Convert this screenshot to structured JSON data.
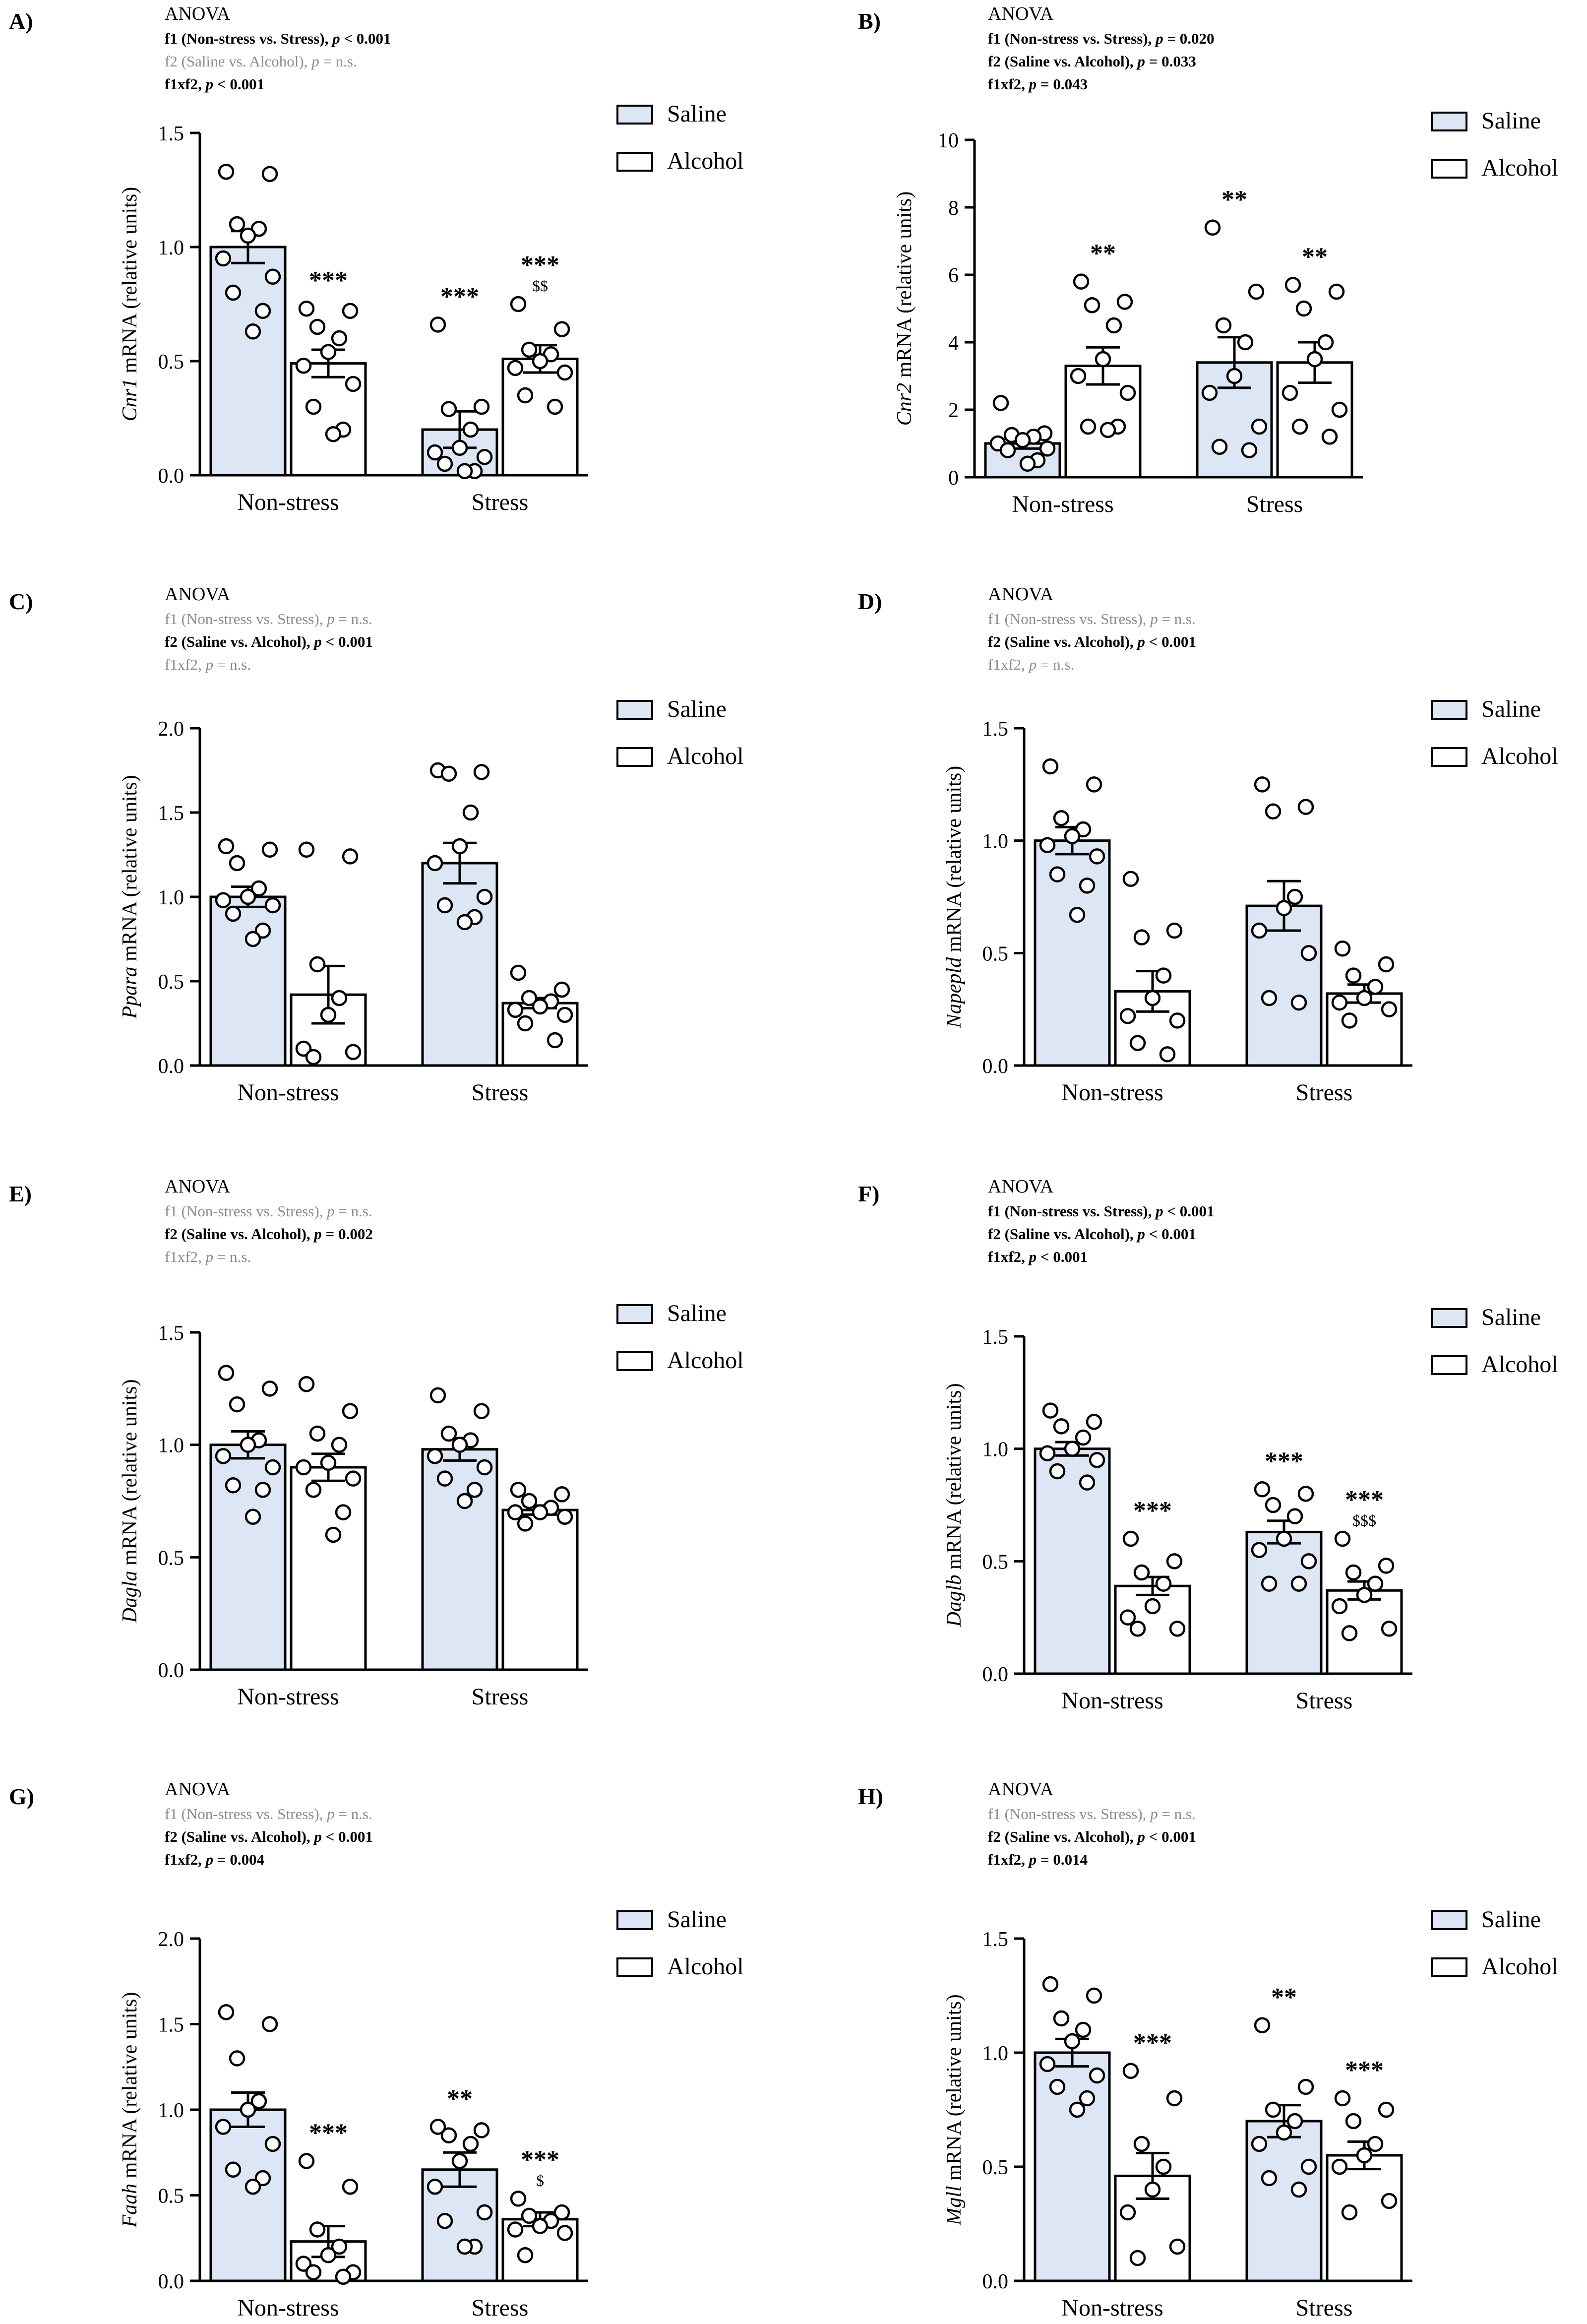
{
  "figure": {
    "legend_labels": {
      "saline": "Saline",
      "alcohol": "Alcohol"
    },
    "anova_heading": "ANOVA",
    "ylabel_suffix": " mRNA (relative units)",
    "colors": {
      "saline": "#dce6f5",
      "alcohol": "#ffffff",
      "stroke": "#000000",
      "ns_text": "#8c8c8c"
    }
  },
  "chart_data": [
    {
      "panel": "A)",
      "type": "bar",
      "gene": "Cnr1",
      "anova": [
        {
          "factor": "f1 (Non-stress vs. Stress), ",
          "pvalue": "< 0.001",
          "significant": true
        },
        {
          "factor": "f2 (Saline vs. Alcohol), ",
          "pvalue": "= n.s.",
          "significant": false
        },
        {
          "factor": "f1xf2, ",
          "pvalue": "< 0.001",
          "significant": true
        }
      ],
      "categories": [
        "Non-stress",
        "Stress"
      ],
      "ylim": [
        0,
        1.5
      ],
      "yticks": [
        "0.0",
        "0.5",
        "1.0",
        "1.5"
      ],
      "series": [
        {
          "name": "Saline",
          "values": [
            1.0,
            0.2
          ],
          "sem": [
            0.07,
            0.08
          ],
          "points": [
            [
              1.33,
              1.32,
              1.1,
              1.08,
              1.05,
              0.95,
              0.87,
              0.8,
              0.72,
              0.63
            ],
            [
              0.66,
              0.3,
              0.29,
              0.2,
              0.12,
              0.1,
              0.08,
              0.05,
              0.0,
              0.0
            ]
          ],
          "annotations": [
            "",
            "***"
          ],
          "sub_annotations": [
            "",
            ""
          ]
        },
        {
          "name": "Alcohol",
          "values": [
            0.49,
            0.51
          ],
          "sem": [
            0.06,
            0.06
          ],
          "points": [
            [
              0.73,
              0.72,
              0.65,
              0.6,
              0.54,
              0.48,
              0.4,
              0.3,
              0.2,
              0.18
            ],
            [
              0.75,
              0.64,
              0.55,
              0.53,
              0.5,
              0.47,
              0.45,
              0.35,
              0.3
            ]
          ],
          "annotations": [
            "***",
            "***"
          ],
          "sub_annotations": [
            "",
            "$$"
          ]
        }
      ]
    },
    {
      "panel": "B)",
      "type": "bar",
      "gene": "Cnr2",
      "anova": [
        {
          "factor": "f1 (Non-stress vs. Stress), ",
          "pvalue": "= 0.020",
          "significant": true
        },
        {
          "factor": "f2 (Saline vs. Alcohol), ",
          "pvalue": "= 0.033",
          "significant": true
        },
        {
          "factor": "f1xf2, ",
          "pvalue": "= 0.043",
          "significant": true
        }
      ],
      "categories": [
        "Non-stress",
        "Stress"
      ],
      "ylim": [
        0,
        10
      ],
      "yticks": [
        "0",
        "2",
        "4",
        "6",
        "8",
        "10"
      ],
      "series": [
        {
          "name": "Saline",
          "values": [
            1.0,
            3.4
          ],
          "sem": [
            0.15,
            0.75
          ],
          "points": [
            [
              2.2,
              1.3,
              1.25,
              1.2,
              1.1,
              1.0,
              0.85,
              0.8,
              0.5,
              0.4
            ],
            [
              7.4,
              5.5,
              4.5,
              4.0,
              3.0,
              2.5,
              1.5,
              0.9,
              0.8
            ]
          ],
          "annotations": [
            "",
            "**"
          ],
          "sub_annotations": [
            "",
            ""
          ]
        },
        {
          "name": "Alcohol",
          "values": [
            3.3,
            3.4
          ],
          "sem": [
            0.55,
            0.6
          ],
          "points": [
            [
              5.8,
              5.2,
              5.1,
              4.5,
              3.5,
              3.0,
              2.5,
              1.5,
              1.5,
              1.4
            ],
            [
              5.7,
              5.5,
              5.0,
              4.0,
              3.5,
              2.5,
              2.0,
              1.5,
              1.2
            ]
          ],
          "annotations": [
            "**",
            "**"
          ],
          "sub_annotations": [
            "",
            ""
          ]
        }
      ]
    },
    {
      "panel": "C)",
      "type": "bar",
      "gene": "Ppara",
      "anova": [
        {
          "factor": "f1 (Non-stress vs. Stress), ",
          "pvalue": "= n.s.",
          "significant": false
        },
        {
          "factor": "f2 (Saline vs. Alcohol), ",
          "pvalue": "< 0.001",
          "significant": true
        },
        {
          "factor": "f1xf2, ",
          "pvalue": "= n.s.",
          "significant": false
        }
      ],
      "categories": [
        "Non-stress",
        "Stress"
      ],
      "ylim": [
        0,
        2.0
      ],
      "yticks": [
        "0.0",
        "0.5",
        "1.0",
        "1.5",
        "2.0"
      ],
      "series": [
        {
          "name": "Saline",
          "values": [
            1.0,
            1.2
          ],
          "sem": [
            0.06,
            0.12
          ],
          "points": [
            [
              1.3,
              1.28,
              1.2,
              1.05,
              1.0,
              0.98,
              0.95,
              0.9,
              0.8,
              0.75
            ],
            [
              1.75,
              1.74,
              1.73,
              1.5,
              1.3,
              1.2,
              1.0,
              0.95,
              0.88,
              0.85
            ]
          ],
          "annotations": [
            "",
            ""
          ],
          "sub_annotations": [
            "",
            ""
          ]
        },
        {
          "name": "Alcohol",
          "values": [
            0.42,
            0.37
          ],
          "sem": [
            0.17,
            0.03
          ],
          "points": [
            [
              1.28,
              1.24,
              0.6,
              0.4,
              0.3,
              0.1,
              0.08,
              0.05
            ],
            [
              0.55,
              0.45,
              0.4,
              0.38,
              0.35,
              0.33,
              0.3,
              0.25,
              0.15
            ]
          ],
          "annotations": [
            "",
            ""
          ],
          "sub_annotations": [
            "",
            ""
          ]
        }
      ]
    },
    {
      "panel": "D)",
      "type": "bar",
      "gene": "Napepld",
      "anova": [
        {
          "factor": "f1 (Non-stress vs. Stress), ",
          "pvalue": "= n.s.",
          "significant": false
        },
        {
          "factor": "f2 (Saline vs. Alcohol), ",
          "pvalue": "< 0.001",
          "significant": true
        },
        {
          "factor": "f1xf2, ",
          "pvalue": "= n.s.",
          "significant": false
        }
      ],
      "categories": [
        "Non-stress",
        "Stress"
      ],
      "ylim": [
        0,
        1.5
      ],
      "yticks": [
        "0.0",
        "0.5",
        "1.0",
        "1.5"
      ],
      "series": [
        {
          "name": "Saline",
          "values": [
            1.0,
            0.71
          ],
          "sem": [
            0.06,
            0.11
          ],
          "points": [
            [
              1.33,
              1.25,
              1.1,
              1.05,
              1.02,
              0.98,
              0.93,
              0.85,
              0.8,
              0.67
            ],
            [
              1.25,
              1.15,
              1.13,
              0.75,
              0.7,
              0.6,
              0.5,
              0.3,
              0.28
            ]
          ],
          "annotations": [
            "",
            ""
          ],
          "sub_annotations": [
            "",
            ""
          ]
        },
        {
          "name": "Alcohol",
          "values": [
            0.33,
            0.32
          ],
          "sem": [
            0.09,
            0.04
          ],
          "points": [
            [
              0.83,
              0.6,
              0.57,
              0.4,
              0.3,
              0.22,
              0.2,
              0.1,
              0.05
            ],
            [
              0.52,
              0.45,
              0.4,
              0.35,
              0.3,
              0.28,
              0.25,
              0.2
            ]
          ],
          "annotations": [
            "",
            ""
          ],
          "sub_annotations": [
            "",
            ""
          ]
        }
      ]
    },
    {
      "panel": "E)",
      "type": "bar",
      "gene": "Dagla",
      "anova": [
        {
          "factor": "f1 (Non-stress vs. Stress), ",
          "pvalue": "= n.s.",
          "significant": false
        },
        {
          "factor": "f2 (Saline vs. Alcohol), ",
          "pvalue": "= 0.002",
          "significant": true
        },
        {
          "factor": "f1xf2, ",
          "pvalue": "= n.s.",
          "significant": false
        }
      ],
      "categories": [
        "Non-stress",
        "Stress"
      ],
      "ylim": [
        0,
        1.5
      ],
      "yticks": [
        "0.0",
        "0.5",
        "1.0",
        "1.5"
      ],
      "series": [
        {
          "name": "Saline",
          "values": [
            1.0,
            0.98
          ],
          "sem": [
            0.06,
            0.05
          ],
          "points": [
            [
              1.32,
              1.25,
              1.18,
              1.02,
              1.0,
              0.95,
              0.9,
              0.82,
              0.8,
              0.68
            ],
            [
              1.22,
              1.15,
              1.05,
              1.02,
              1.0,
              0.95,
              0.9,
              0.85,
              0.8,
              0.75
            ]
          ],
          "annotations": [
            "",
            ""
          ],
          "sub_annotations": [
            "",
            ""
          ]
        },
        {
          "name": "Alcohol",
          "values": [
            0.9,
            0.71
          ],
          "sem": [
            0.06,
            0.02
          ],
          "points": [
            [
              1.27,
              1.15,
              1.05,
              1.0,
              0.92,
              0.9,
              0.85,
              0.8,
              0.7,
              0.6
            ],
            [
              0.8,
              0.78,
              0.75,
              0.72,
              0.7,
              0.7,
              0.68,
              0.65
            ]
          ],
          "annotations": [
            "",
            ""
          ],
          "sub_annotations": [
            "",
            ""
          ]
        }
      ]
    },
    {
      "panel": "F)",
      "type": "bar",
      "gene": "Daglb",
      "anova": [
        {
          "factor": "f1 (Non-stress vs. Stress), ",
          "pvalue": "< 0.001",
          "significant": true
        },
        {
          "factor": "f2 (Saline vs. Alcohol), ",
          "pvalue": "< 0.001",
          "significant": true
        },
        {
          "factor": "f1xf2, ",
          "pvalue": "< 0.001",
          "significant": true
        }
      ],
      "categories": [
        "Non-stress",
        "Stress"
      ],
      "ylim": [
        0,
        1.5
      ],
      "yticks": [
        "0.0",
        "0.5",
        "1.0",
        "1.5"
      ],
      "series": [
        {
          "name": "Saline",
          "values": [
            1.0,
            0.63
          ],
          "sem": [
            0.03,
            0.05
          ],
          "points": [
            [
              1.17,
              1.12,
              1.1,
              1.05,
              1.0,
              0.98,
              0.95,
              0.9,
              0.85
            ],
            [
              0.82,
              0.8,
              0.75,
              0.7,
              0.6,
              0.55,
              0.5,
              0.4,
              0.4
            ]
          ],
          "annotations": [
            "",
            "***"
          ],
          "sub_annotations": [
            "",
            ""
          ]
        },
        {
          "name": "Alcohol",
          "values": [
            0.39,
            0.37
          ],
          "sem": [
            0.04,
            0.04
          ],
          "points": [
            [
              0.6,
              0.5,
              0.45,
              0.4,
              0.3,
              0.25,
              0.2,
              0.2
            ],
            [
              0.6,
              0.48,
              0.45,
              0.4,
              0.35,
              0.3,
              0.2,
              0.18
            ]
          ],
          "annotations": [
            "***",
            "***"
          ],
          "sub_annotations": [
            "",
            "$$$"
          ]
        }
      ]
    },
    {
      "panel": "G)",
      "type": "bar",
      "gene": "Faah",
      "anova": [
        {
          "factor": "f1 (Non-stress vs. Stress), ",
          "pvalue": "= n.s.",
          "significant": false
        },
        {
          "factor": "f2 (Saline vs. Alcohol), ",
          "pvalue": "< 0.001",
          "significant": true
        },
        {
          "factor": "f1xf2, ",
          "pvalue": "= 0.004",
          "significant": true
        }
      ],
      "categories": [
        "Non-stress",
        "Stress"
      ],
      "ylim": [
        0,
        2.0
      ],
      "yticks": [
        "0.0",
        "0.5",
        "1.0",
        "1.5",
        "2.0"
      ],
      "series": [
        {
          "name": "Saline",
          "values": [
            1.0,
            0.65
          ],
          "sem": [
            0.1,
            0.1
          ],
          "points": [
            [
              1.57,
              1.5,
              1.3,
              1.05,
              1.0,
              0.9,
              0.8,
              0.65,
              0.6,
              0.55
            ],
            [
              0.9,
              0.88,
              0.85,
              0.8,
              0.7,
              0.55,
              0.4,
              0.35,
              0.2,
              0.2
            ]
          ],
          "annotations": [
            "",
            "**"
          ],
          "sub_annotations": [
            "",
            ""
          ]
        },
        {
          "name": "Alcohol",
          "values": [
            0.23,
            0.36
          ],
          "sem": [
            0.09,
            0.04
          ],
          "points": [
            [
              0.7,
              0.55,
              0.3,
              0.2,
              0.15,
              0.1,
              0.05,
              0.05,
              0.02
            ],
            [
              0.48,
              0.4,
              0.38,
              0.35,
              0.32,
              0.3,
              0.28,
              0.15
            ]
          ],
          "annotations": [
            "***",
            "***"
          ],
          "sub_annotations": [
            "",
            "$"
          ]
        }
      ]
    },
    {
      "panel": "H)",
      "type": "bar",
      "gene": "Mgll",
      "anova": [
        {
          "factor": "f1 (Non-stress vs. Stress), ",
          "pvalue": "= n.s.",
          "significant": false
        },
        {
          "factor": "f2 (Saline vs. Alcohol), ",
          "pvalue": "< 0.001",
          "significant": true
        },
        {
          "factor": "f1xf2, ",
          "pvalue": "= 0.014",
          "significant": true
        }
      ],
      "categories": [
        "Non-stress",
        "Stress"
      ],
      "ylim": [
        0,
        1.5
      ],
      "yticks": [
        "0.0",
        "0.5",
        "1.0",
        "1.5"
      ],
      "series": [
        {
          "name": "Saline",
          "values": [
            1.0,
            0.7
          ],
          "sem": [
            0.06,
            0.07
          ],
          "points": [
            [
              1.3,
              1.25,
              1.15,
              1.1,
              1.05,
              0.95,
              0.9,
              0.85,
              0.8,
              0.75
            ],
            [
              1.12,
              0.85,
              0.75,
              0.7,
              0.65,
              0.6,
              0.5,
              0.45,
              0.4
            ]
          ],
          "annotations": [
            "",
            "**"
          ],
          "sub_annotations": [
            "",
            ""
          ]
        },
        {
          "name": "Alcohol",
          "values": [
            0.46,
            0.55
          ],
          "sem": [
            0.1,
            0.06
          ],
          "points": [
            [
              0.92,
              0.8,
              0.6,
              0.5,
              0.4,
              0.3,
              0.15,
              0.1
            ],
            [
              0.8,
              0.75,
              0.7,
              0.6,
              0.55,
              0.5,
              0.35,
              0.3
            ]
          ],
          "annotations": [
            "***",
            "***"
          ],
          "sub_annotations": [
            "",
            ""
          ]
        }
      ]
    }
  ]
}
